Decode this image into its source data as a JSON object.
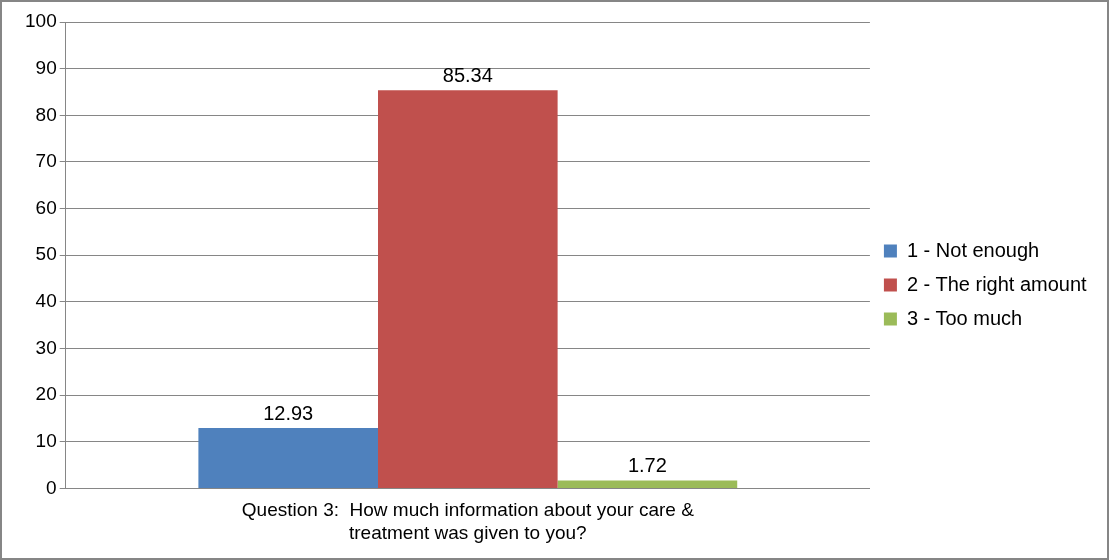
{
  "chart_data": {
    "type": "bar",
    "categories": [
      "Question 3:  How much information about your care & treatment was given to you?"
    ],
    "series": [
      {
        "name": "1 - Not enough",
        "color": "#4f81bd",
        "values": [
          12.93
        ]
      },
      {
        "name": "2 - The right amount",
        "color": "#c0504d",
        "values": [
          85.34
        ]
      },
      {
        "name": "3 - Too much",
        "color": "#9bbb59",
        "values": [
          1.72
        ]
      }
    ],
    "ylim": [
      0,
      100
    ],
    "yticks": [
      0,
      10,
      20,
      30,
      40,
      50,
      60,
      70,
      80,
      90,
      100
    ],
    "grid": "y",
    "legend": "right",
    "data_labels": true
  }
}
